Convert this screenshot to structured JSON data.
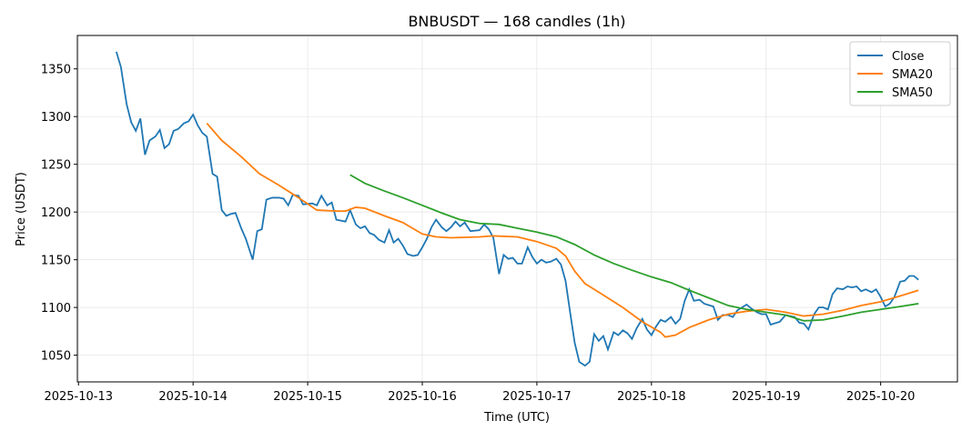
{
  "chart_data": {
    "type": "line",
    "title": "BNBUSDT — 168 candles (1h)",
    "xlabel": "Time (UTC)",
    "ylabel": "Price (USDT)",
    "xlim": [
      -0.01,
      7.67
    ],
    "ylim": [
      1022,
      1385
    ],
    "xticks": [
      {
        "value": 0,
        "label": "2025-10-13"
      },
      {
        "value": 1,
        "label": "2025-10-14"
      },
      {
        "value": 2,
        "label": "2025-10-15"
      },
      {
        "value": 3,
        "label": "2025-10-16"
      },
      {
        "value": 4,
        "label": "2025-10-17"
      },
      {
        "value": 5,
        "label": "2025-10-18"
      },
      {
        "value": 6,
        "label": "2025-10-19"
      },
      {
        "value": 7,
        "label": "2025-10-20"
      }
    ],
    "yticks": [
      1050,
      1100,
      1150,
      1200,
      1250,
      1300,
      1350
    ],
    "grid": true,
    "legend": "upper right",
    "series": [
      {
        "name": "Close",
        "color": "#1f77b4",
        "x": [
          0.33,
          0.37,
          0.42,
          0.46,
          0.5,
          0.54,
          0.58,
          0.62,
          0.67,
          0.71,
          0.75,
          0.79,
          0.83,
          0.87,
          0.92,
          0.96,
          1.0,
          1.04,
          1.08,
          1.12,
          1.17,
          1.21,
          1.25,
          1.29,
          1.33,
          1.37,
          1.42,
          1.46,
          1.52,
          1.56,
          1.6,
          1.64,
          1.69,
          1.75,
          1.79,
          1.83,
          1.87,
          1.92,
          1.96,
          2.04,
          2.08,
          2.12,
          2.17,
          2.21,
          2.25,
          2.33,
          2.37,
          2.42,
          2.46,
          2.5,
          2.54,
          2.58,
          2.62,
          2.67,
          2.71,
          2.75,
          2.79,
          2.83,
          2.87,
          2.92,
          2.96,
          3.0,
          3.04,
          3.08,
          3.12,
          3.17,
          3.21,
          3.25,
          3.29,
          3.33,
          3.37,
          3.42,
          3.5,
          3.54,
          3.58,
          3.62,
          3.67,
          3.71,
          3.75,
          3.79,
          3.83,
          3.87,
          3.92,
          3.96,
          4.0,
          4.04,
          4.08,
          4.12,
          4.17,
          4.21,
          4.25,
          4.29,
          4.33,
          4.37,
          4.42,
          4.46,
          4.5,
          4.54,
          4.58,
          4.62,
          4.67,
          4.71,
          4.75,
          4.79,
          4.83,
          4.87,
          4.92,
          4.96,
          5.0,
          5.04,
          5.08,
          5.12,
          5.17,
          5.21,
          5.25,
          5.29,
          5.33,
          5.37,
          5.42,
          5.46,
          5.54,
          5.58,
          5.62,
          5.67,
          5.71,
          5.75,
          5.83,
          5.87,
          5.92,
          5.96,
          6.0,
          6.04,
          6.12,
          6.17,
          6.25,
          6.29,
          6.33,
          6.37,
          6.42,
          6.46,
          6.5,
          6.54,
          6.58,
          6.62,
          6.67,
          6.71,
          6.75,
          6.79,
          6.83,
          6.87,
          6.92,
          6.96,
          7.0,
          7.04,
          7.08,
          7.12,
          7.17,
          7.21,
          7.25,
          7.29,
          7.33
        ],
        "values": [
          1368,
          1352,
          1313,
          1294,
          1285,
          1298,
          1260,
          1275,
          1279,
          1286,
          1267,
          1271,
          1285,
          1287,
          1293,
          1295,
          1302,
          1291,
          1283,
          1279,
          1240,
          1237,
          1202,
          1196,
          1198,
          1199,
          1183,
          1172,
          1150,
          1180,
          1182,
          1213,
          1215,
          1215,
          1214,
          1207,
          1218,
          1217,
          1208,
          1209,
          1207,
          1217,
          1207,
          1210,
          1192,
          1190,
          1202,
          1187,
          1183,
          1185,
          1178,
          1176,
          1171,
          1168,
          1181,
          1168,
          1172,
          1165,
          1156,
          1154,
          1155,
          1163,
          1172,
          1184,
          1192,
          1184,
          1180,
          1184,
          1190,
          1185,
          1189,
          1180,
          1181,
          1187,
          1182,
          1173,
          1135,
          1155,
          1151,
          1152,
          1146,
          1146,
          1163,
          1153,
          1146,
          1150,
          1147,
          1148,
          1151,
          1145,
          1128,
          1095,
          1063,
          1043,
          1039,
          1043,
          1072,
          1065,
          1070,
          1056,
          1074,
          1071,
          1076,
          1073,
          1067,
          1078,
          1088,
          1077,
          1071,
          1080,
          1087,
          1085,
          1090,
          1083,
          1088,
          1107,
          1119,
          1107,
          1108,
          1104,
          1101,
          1087,
          1092,
          1092,
          1090,
          1097,
          1103,
          1099,
          1095,
          1093,
          1093,
          1082,
          1085,
          1092,
          1090,
          1084,
          1083,
          1077,
          1093,
          1100,
          1100,
          1098,
          1114,
          1120,
          1119,
          1122,
          1121,
          1122,
          1117,
          1119,
          1116,
          1119,
          1111,
          1101,
          1104,
          1111,
          1127,
          1128,
          1133,
          1133,
          1129
        ]
      },
      {
        "name": "SMA20",
        "color": "#ff7f0e",
        "x": [
          1.12,
          1.25,
          1.42,
          1.58,
          1.75,
          1.92,
          2.08,
          2.25,
          2.33,
          2.42,
          2.5,
          2.67,
          2.83,
          3.0,
          3.12,
          3.25,
          3.5,
          3.62,
          3.83,
          4.0,
          4.17,
          4.25,
          4.33,
          4.42,
          4.58,
          4.75,
          4.92,
          5.08,
          5.12,
          5.21,
          5.33,
          5.5,
          5.67,
          5.83,
          6.0,
          6.17,
          6.33,
          6.5,
          6.67,
          6.83,
          7.0,
          7.17,
          7.33
        ],
        "values": [
          1293,
          1275,
          1258,
          1240,
          1228,
          1215,
          1202,
          1201,
          1201,
          1205,
          1204,
          1196,
          1189,
          1177,
          1174,
          1173,
          1174,
          1175,
          1174,
          1169,
          1162,
          1154,
          1138,
          1125,
          1113,
          1100,
          1085,
          1074,
          1069,
          1071,
          1079,
          1087,
          1093,
          1096,
          1098,
          1095,
          1091,
          1093,
          1097,
          1102,
          1106,
          1112,
          1118
        ]
      },
      {
        "name": "SMA50",
        "color": "#2ca02c",
        "x": [
          2.37,
          2.5,
          2.67,
          2.83,
          3.0,
          3.17,
          3.33,
          3.5,
          3.67,
          3.83,
          4.0,
          4.17,
          4.33,
          4.5,
          4.67,
          4.83,
          5.0,
          5.17,
          5.33,
          5.5,
          5.67,
          5.83,
          6.0,
          6.17,
          6.33,
          6.5,
          6.67,
          6.83,
          7.0,
          7.17,
          7.33
        ],
        "values": [
          1239,
          1230,
          1222,
          1215,
          1207,
          1199,
          1192,
          1188,
          1187,
          1183,
          1179,
          1174,
          1166,
          1155,
          1146,
          1139,
          1132,
          1126,
          1118,
          1110,
          1102,
          1098,
          1095,
          1092,
          1086,
          1087,
          1091,
          1095,
          1098,
          1101,
          1104
        ]
      }
    ]
  }
}
